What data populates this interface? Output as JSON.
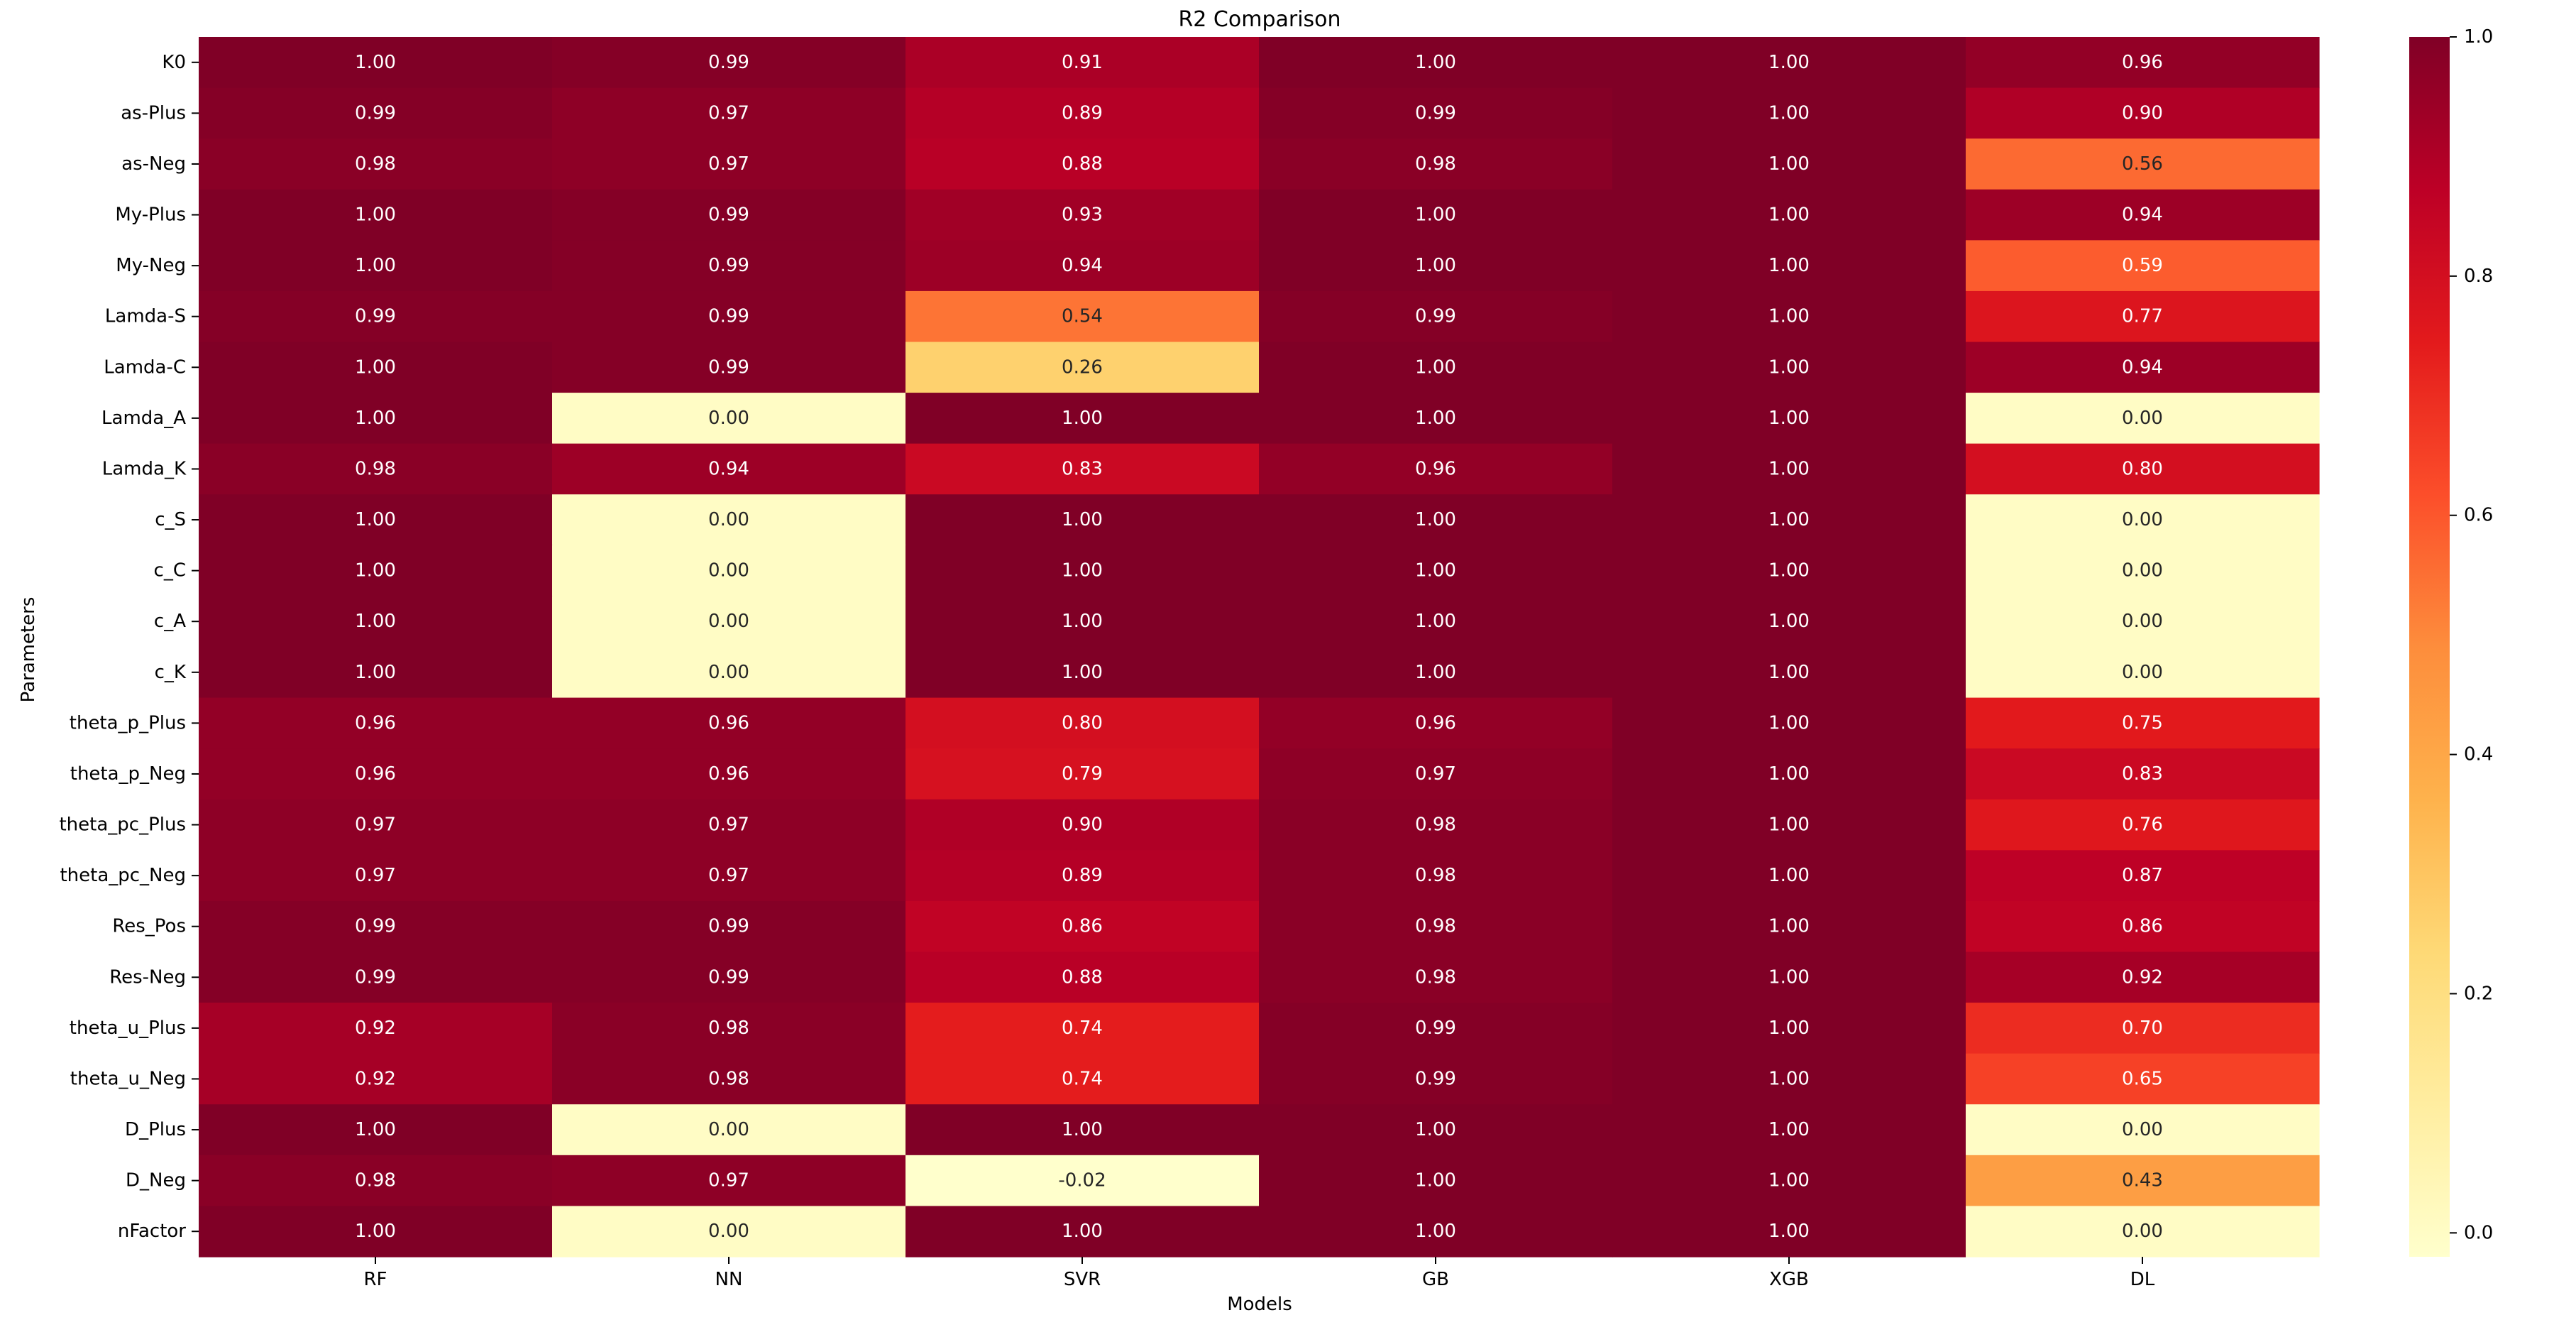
{
  "chart_data": {
    "type": "heatmap",
    "title": "R2 Comparison",
    "xlabel": "Models",
    "ylabel": "Parameters",
    "columns": [
      "RF",
      "NN",
      "SVR",
      "GB",
      "XGB",
      "DL"
    ],
    "rows": [
      "K0",
      "as-Plus",
      "as-Neg",
      "My-Plus",
      "My-Neg",
      "Lamda-S",
      "Lamda-C",
      "Lamda_A",
      "Lamda_K",
      "c_S",
      "c_C",
      "c_A",
      "c_K",
      "theta_p_Plus",
      "theta_p_Neg",
      "theta_pc_Plus",
      "theta_pc_Neg",
      "Res_Pos",
      "Res-Neg",
      "theta_u_Plus",
      "theta_u_Neg",
      "D_Plus",
      "D_Neg",
      "nFactor"
    ],
    "values": [
      [
        1.0,
        0.99,
        0.91,
        1.0,
        1.0,
        0.96
      ],
      [
        0.99,
        0.97,
        0.89,
        0.99,
        1.0,
        0.9
      ],
      [
        0.98,
        0.97,
        0.88,
        0.98,
        1.0,
        0.56
      ],
      [
        1.0,
        0.99,
        0.93,
        1.0,
        1.0,
        0.94
      ],
      [
        1.0,
        0.99,
        0.94,
        1.0,
        1.0,
        0.59
      ],
      [
        0.99,
        0.99,
        0.54,
        0.99,
        1.0,
        0.77
      ],
      [
        1.0,
        0.99,
        0.26,
        1.0,
        1.0,
        0.94
      ],
      [
        1.0,
        0.0,
        1.0,
        1.0,
        1.0,
        0.0
      ],
      [
        0.98,
        0.94,
        0.83,
        0.96,
        1.0,
        0.8
      ],
      [
        1.0,
        0.0,
        1.0,
        1.0,
        1.0,
        0.0
      ],
      [
        1.0,
        0.0,
        1.0,
        1.0,
        1.0,
        0.0
      ],
      [
        1.0,
        0.0,
        1.0,
        1.0,
        1.0,
        0.0
      ],
      [
        1.0,
        0.0,
        1.0,
        1.0,
        1.0,
        0.0
      ],
      [
        0.96,
        0.96,
        0.8,
        0.96,
        1.0,
        0.75
      ],
      [
        0.96,
        0.96,
        0.79,
        0.97,
        1.0,
        0.83
      ],
      [
        0.97,
        0.97,
        0.9,
        0.98,
        1.0,
        0.76
      ],
      [
        0.97,
        0.97,
        0.89,
        0.98,
        1.0,
        0.87
      ],
      [
        0.99,
        0.99,
        0.86,
        0.98,
        1.0,
        0.86
      ],
      [
        0.99,
        0.99,
        0.88,
        0.98,
        1.0,
        0.92
      ],
      [
        0.92,
        0.98,
        0.74,
        0.99,
        1.0,
        0.7
      ],
      [
        0.92,
        0.98,
        0.74,
        0.99,
        1.0,
        0.65
      ],
      [
        1.0,
        0.0,
        1.0,
        1.0,
        1.0,
        0.0
      ],
      [
        0.98,
        0.97,
        -0.02,
        1.0,
        1.0,
        0.43
      ],
      [
        1.0,
        0.0,
        1.0,
        1.0,
        1.0,
        0.0
      ]
    ],
    "value_format": "0.00",
    "colormap": "YlOrRd",
    "vmin": -0.02,
    "vmax": 1.0,
    "colorbar": {
      "ticks": [
        0.0,
        0.2,
        0.4,
        0.6,
        0.8,
        1.0
      ],
      "tick_labels": [
        "0.0",
        "0.2",
        "0.4",
        "0.6",
        "0.8",
        "1.0"
      ]
    },
    "colormap_stops": [
      "#ffffcc",
      "#ffeda0",
      "#fed976",
      "#feb24c",
      "#fd8d3c",
      "#fc4e2a",
      "#e31a1c",
      "#bd0026",
      "#800026"
    ],
    "grid": false,
    "legend": "colorbar-right"
  }
}
